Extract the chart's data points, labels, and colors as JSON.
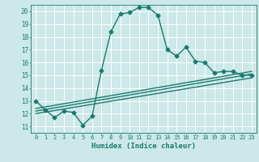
{
  "title": "",
  "xlabel": "Humidex (Indice chaleur)",
  "bg_color": "#cce8e8",
  "grid_color": "#ffffff",
  "line_color": "#1a7a6e",
  "xlim": [
    -0.5,
    23.5
  ],
  "ylim": [
    10.5,
    20.5
  ],
  "xticks": [
    0,
    1,
    2,
    3,
    4,
    5,
    6,
    7,
    8,
    9,
    10,
    11,
    12,
    13,
    14,
    15,
    16,
    17,
    18,
    19,
    20,
    21,
    22,
    23
  ],
  "yticks": [
    11,
    12,
    13,
    14,
    15,
    16,
    17,
    18,
    19,
    20
  ],
  "curve1_x": [
    0,
    1,
    2,
    3,
    4,
    5,
    6,
    7,
    8,
    9,
    10,
    11,
    12,
    13,
    14,
    15,
    16,
    17,
    18,
    19,
    20,
    21,
    22,
    23
  ],
  "curve1_y": [
    13.0,
    12.3,
    11.7,
    12.2,
    12.1,
    11.1,
    11.8,
    15.4,
    18.4,
    19.8,
    19.9,
    20.3,
    20.3,
    19.7,
    17.0,
    16.5,
    17.2,
    16.1,
    16.0,
    15.2,
    15.3,
    15.3,
    15.0,
    15.0
  ],
  "line2_x": [
    0,
    23
  ],
  "line2_y": [
    12.0,
    14.8
  ],
  "line3_x": [
    0,
    23
  ],
  "line3_y": [
    12.2,
    15.1
  ],
  "line4_x": [
    0,
    23
  ],
  "line4_y": [
    12.4,
    15.3
  ],
  "marker_size": 2.5,
  "line_width": 1.0
}
